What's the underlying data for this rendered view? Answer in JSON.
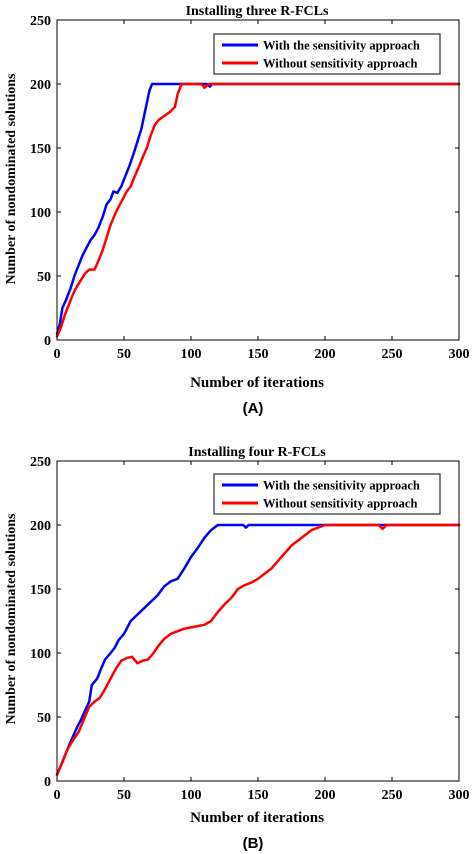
{
  "chart_data": [
    {
      "type": "line",
      "title": "Installing three R-FCLs",
      "xlabel": "Number of iterations",
      "ylabel": "Number of nondominated solutions",
      "xlim": [
        0,
        300
      ],
      "ylim": [
        0,
        250
      ],
      "xticks": [
        "0",
        "50",
        "100",
        "150",
        "200",
        "250",
        "300"
      ],
      "yticks": [
        "0",
        "50",
        "100",
        "150",
        "200",
        "250"
      ],
      "grid": false,
      "legend": "top-right",
      "panel_label": "(A)",
      "series": [
        {
          "name": "With the sensitivity approach",
          "color": "#0000ff",
          "points": [
            [
              0,
              5
            ],
            [
              2,
              12
            ],
            [
              4,
              25
            ],
            [
              7,
              32
            ],
            [
              10,
              40
            ],
            [
              13,
              50
            ],
            [
              16,
              58
            ],
            [
              19,
              66
            ],
            [
              22,
              72
            ],
            [
              25,
              78
            ],
            [
              28,
              82
            ],
            [
              31,
              88
            ],
            [
              34,
              96
            ],
            [
              37,
              106
            ],
            [
              40,
              110
            ],
            [
              42,
              116
            ],
            [
              45,
              115
            ],
            [
              48,
              120
            ],
            [
              51,
              128
            ],
            [
              54,
              136
            ],
            [
              57,
              145
            ],
            [
              60,
              155
            ],
            [
              63,
              165
            ],
            [
              66,
              180
            ],
            [
              69,
              195
            ],
            [
              71,
              200
            ],
            [
              112,
              200
            ],
            [
              114,
              198
            ],
            [
              116,
              200
            ],
            [
              300,
              200
            ]
          ]
        },
        {
          "name": "Without sensitivity approach",
          "color": "#ff0000",
          "points": [
            [
              0,
              3
            ],
            [
              3,
              10
            ],
            [
              6,
              20
            ],
            [
              9,
              28
            ],
            [
              12,
              36
            ],
            [
              15,
              42
            ],
            [
              18,
              47
            ],
            [
              21,
              52
            ],
            [
              24,
              55
            ],
            [
              28,
              55
            ],
            [
              31,
              62
            ],
            [
              34,
              70
            ],
            [
              37,
              80
            ],
            [
              40,
              90
            ],
            [
              44,
              100
            ],
            [
              48,
              108
            ],
            [
              52,
              116
            ],
            [
              55,
              120
            ],
            [
              58,
              128
            ],
            [
              61,
              135
            ],
            [
              64,
              143
            ],
            [
              67,
              150
            ],
            [
              70,
              160
            ],
            [
              73,
              168
            ],
            [
              76,
              172
            ],
            [
              80,
              175
            ],
            [
              84,
              178
            ],
            [
              88,
              182
            ],
            [
              90,
              192
            ],
            [
              93,
              200
            ],
            [
              108,
              200
            ],
            [
              110,
              197
            ],
            [
              113,
              200
            ],
            [
              300,
              200
            ]
          ]
        }
      ]
    },
    {
      "type": "line",
      "title": "Installing four R-FCLs",
      "xlabel": "Number of iterations",
      "ylabel": "Number of nondominated solutions",
      "xlim": [
        0,
        300
      ],
      "ylim": [
        0,
        250
      ],
      "xticks": [
        "0",
        "50",
        "100",
        "150",
        "200",
        "250",
        "300"
      ],
      "yticks": [
        "0",
        "50",
        "100",
        "150",
        "200",
        "250"
      ],
      "grid": false,
      "legend": "top-right",
      "panel_label": "(B)",
      "series": [
        {
          "name": "With the sensitivity approach",
          "color": "#0000ff",
          "points": [
            [
              0,
              5
            ],
            [
              3,
              12
            ],
            [
              6,
              20
            ],
            [
              9,
              28
            ],
            [
              12,
              35
            ],
            [
              15,
              42
            ],
            [
              18,
              48
            ],
            [
              21,
              55
            ],
            [
              24,
              62
            ],
            [
              26,
              75
            ],
            [
              30,
              80
            ],
            [
              33,
              88
            ],
            [
              36,
              95
            ],
            [
              40,
              100
            ],
            [
              43,
              104
            ],
            [
              46,
              110
            ],
            [
              50,
              115
            ],
            [
              55,
              125
            ],
            [
              60,
              130
            ],
            [
              65,
              135
            ],
            [
              70,
              140
            ],
            [
              75,
              145
            ],
            [
              80,
              152
            ],
            [
              85,
              156
            ],
            [
              90,
              158
            ],
            [
              95,
              166
            ],
            [
              100,
              175
            ],
            [
              105,
              182
            ],
            [
              110,
              190
            ],
            [
              115,
              196
            ],
            [
              120,
              200
            ],
            [
              139,
              200
            ],
            [
              141,
              198
            ],
            [
              143,
              200
            ],
            [
              300,
              200
            ]
          ]
        },
        {
          "name": "Without sensitivity approach",
          "color": "#ff0000",
          "points": [
            [
              0,
              5
            ],
            [
              4,
              15
            ],
            [
              8,
              25
            ],
            [
              12,
              32
            ],
            [
              16,
              38
            ],
            [
              20,
              48
            ],
            [
              24,
              58
            ],
            [
              28,
              62
            ],
            [
              32,
              65
            ],
            [
              36,
              72
            ],
            [
              40,
              80
            ],
            [
              44,
              88
            ],
            [
              48,
              94
            ],
            [
              52,
              96
            ],
            [
              56,
              97
            ],
            [
              60,
              92
            ],
            [
              64,
              94
            ],
            [
              68,
              95
            ],
            [
              72,
              100
            ],
            [
              76,
              106
            ],
            [
              80,
              111
            ],
            [
              85,
              115
            ],
            [
              90,
              117
            ],
            [
              95,
              119
            ],
            [
              100,
              120
            ],
            [
              105,
              121
            ],
            [
              110,
              122
            ],
            [
              115,
              125
            ],
            [
              120,
              132
            ],
            [
              125,
              138
            ],
            [
              130,
              143
            ],
            [
              135,
              150
            ],
            [
              140,
              153
            ],
            [
              145,
              155
            ],
            [
              150,
              158
            ],
            [
              155,
              162
            ],
            [
              160,
              166
            ],
            [
              165,
              172
            ],
            [
              170,
              178
            ],
            [
              175,
              184
            ],
            [
              180,
              188
            ],
            [
              185,
              192
            ],
            [
              190,
              196
            ],
            [
              195,
              198
            ],
            [
              200,
              200
            ],
            [
              240,
              200
            ],
            [
              243,
              197
            ],
            [
              246,
              200
            ],
            [
              300,
              200
            ]
          ]
        }
      ]
    }
  ]
}
